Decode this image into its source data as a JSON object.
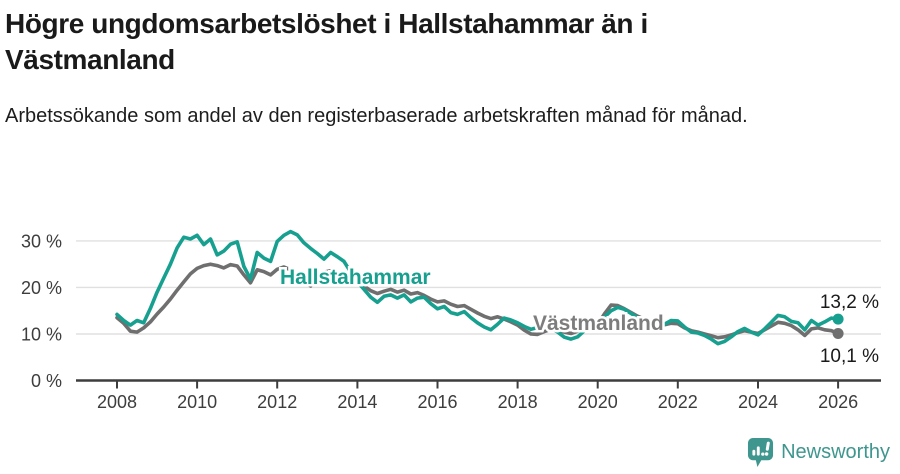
{
  "header": {
    "title": "Högre ungdomsarbetslöshet i Hallstahammar än i Västmanland",
    "subtitle": "Arbetssökande som andel av den registerbaserade arbetskraften månad för månad."
  },
  "chart_data": {
    "type": "line",
    "title": "Högre ungdomsarbetslöshet i Hallstahammar än i Västmanland",
    "subtitle": "Arbetssökande som andel av den registerbaserade arbetskraften månad för månad.",
    "grid": "horizontal",
    "legend": "inline-labels",
    "x_axis": {
      "tick_labels": [
        "2008",
        "2010",
        "2012",
        "2014",
        "2016",
        "2018",
        "2020",
        "2022",
        "2024",
        "2026"
      ],
      "start_year": 2008,
      "months_per_point": 2,
      "range": [
        2008.0,
        2026.0
      ]
    },
    "y_axis": {
      "unit": "%",
      "tick_labels": [
        "30 %",
        "20 %",
        "10 %",
        "0 %"
      ],
      "tick_values": [
        30,
        20,
        10,
        0
      ],
      "ylim": [
        0,
        33.5
      ]
    },
    "series": [
      {
        "name": "Hallstahammar",
        "color": "#17a08f",
        "label_color": "#17a08f",
        "end_label": "13,2 %",
        "end_value": 13.2,
        "values": [
          14.2,
          12.9,
          11.9,
          12.9,
          12.4,
          15.5,
          19.0,
          22.0,
          25.0,
          28.5,
          30.8,
          30.4,
          31.2,
          29.2,
          30.4,
          27.0,
          27.8,
          29.3,
          29.8,
          24.5,
          21.8,
          27.5,
          26.3,
          25.6,
          29.9,
          31.2,
          32.0,
          31.3,
          29.6,
          28.4,
          27.3,
          26.1,
          27.5,
          26.6,
          25.6,
          23.3,
          21.2,
          19.6,
          17.9,
          16.8,
          18.1,
          18.4,
          17.7,
          18.4,
          16.9,
          17.7,
          17.9,
          16.5,
          15.4,
          15.9,
          14.6,
          14.2,
          14.8,
          13.5,
          12.4,
          11.5,
          10.9,
          12.1,
          13.4,
          13.0,
          12.4,
          11.6,
          11.0,
          11.4,
          11.9,
          11.4,
          10.4,
          9.3,
          8.9,
          9.4,
          10.7,
          11.2,
          11.9,
          13.6,
          15.0,
          15.7,
          15.3,
          14.4,
          13.5,
          12.8,
          12.2,
          12.6,
          12.1,
          12.9,
          12.8,
          11.5,
          10.4,
          10.2,
          9.7,
          8.9,
          7.9,
          8.4,
          9.4,
          10.5,
          11.2,
          10.4,
          9.8,
          11.1,
          12.5,
          14.0,
          13.7,
          12.7,
          12.4,
          10.9,
          12.9,
          11.9,
          12.6,
          13.4,
          13.2
        ]
      },
      {
        "name": "Västmanland",
        "color": "#6f6f6f",
        "label_color": "#7d7d7d",
        "end_label": "10,1 %",
        "end_value": 10.1,
        "values": [
          13.5,
          12.3,
          10.6,
          10.4,
          11.3,
          12.6,
          14.3,
          15.8,
          17.5,
          19.4,
          21.2,
          22.9,
          24.1,
          24.7,
          25.0,
          24.7,
          24.2,
          24.9,
          24.6,
          22.7,
          21.0,
          23.8,
          23.4,
          22.7,
          23.9,
          24.4,
          23.8,
          22.8,
          21.4,
          20.3,
          22.3,
          23.3,
          23.6,
          23.1,
          22.5,
          22.9,
          21.5,
          20.3,
          19.3,
          18.7,
          19.2,
          19.6,
          19.0,
          19.4,
          18.6,
          18.9,
          18.3,
          17.5,
          16.9,
          17.1,
          16.4,
          15.9,
          16.1,
          15.3,
          14.5,
          13.8,
          13.3,
          13.7,
          13.2,
          12.6,
          11.9,
          10.8,
          10.0,
          9.9,
          10.5,
          11.0,
          10.8,
          10.4,
          10.1,
          10.6,
          11.0,
          11.3,
          12.1,
          14.3,
          16.2,
          16.1,
          15.4,
          14.6,
          13.8,
          13.2,
          12.7,
          12.4,
          12.0,
          12.3,
          12.2,
          11.3,
          10.7,
          10.4,
          10.0,
          9.6,
          9.2,
          9.4,
          9.8,
          10.3,
          10.7,
          10.4,
          10.1,
          10.9,
          11.7,
          12.5,
          12.3,
          11.8,
          10.9,
          9.7,
          11.1,
          11.3,
          10.9,
          10.7,
          10.1
        ]
      }
    ]
  },
  "footer": {
    "brand": "Newsworthy",
    "brand_color": "#3f968e"
  },
  "colors": {
    "background": "#ffffff",
    "title_text": "#1a1a1a",
    "gridline": "#e0e0e0",
    "axis": "#3d3d3d",
    "hallstahammar_teal": "#17a08f",
    "vastmanland_gray": "#6f6f6f",
    "value_label_text": "#1a1a1a"
  }
}
